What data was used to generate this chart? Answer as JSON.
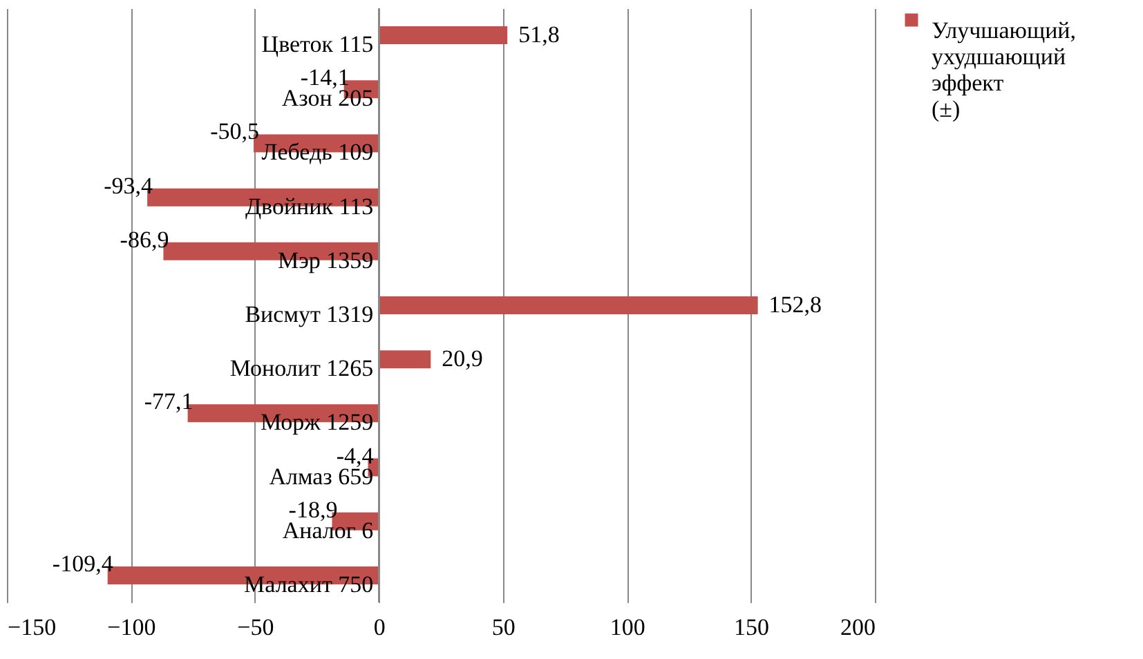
{
  "chart_data": {
    "type": "bar",
    "orientation": "horizontal",
    "categories": [
      "Цветок 115",
      "Азон 205",
      "Лебедь 109",
      "Двойник 113",
      "Мэр 1359",
      "Висмут 1319",
      "Монолит 1265",
      "Морж 1259",
      "Алмаз 659",
      "Аналог 6",
      "Малахит 750"
    ],
    "series": [
      {
        "name": "Улучшающий, ухудшающий эффект (±)",
        "color": "#c0504d",
        "values": [
          51.8,
          -14.1,
          -50.5,
          -93.4,
          -86.9,
          152.8,
          20.9,
          -77.1,
          -4.4,
          -18.9,
          -109.4
        ],
        "value_labels": [
          "51,8",
          "-14,1",
          "-50,5",
          "-93,4",
          "-86,9",
          "152,8",
          "20,9",
          "-77,1",
          "-4,4",
          "-18,9",
          "-109,4"
        ]
      }
    ],
    "xlim": [
      -150,
      200
    ],
    "xticks": [
      -150,
      -100,
      -50,
      0,
      50,
      100,
      150,
      200
    ],
    "grid": "x",
    "legend": "right"
  }
}
